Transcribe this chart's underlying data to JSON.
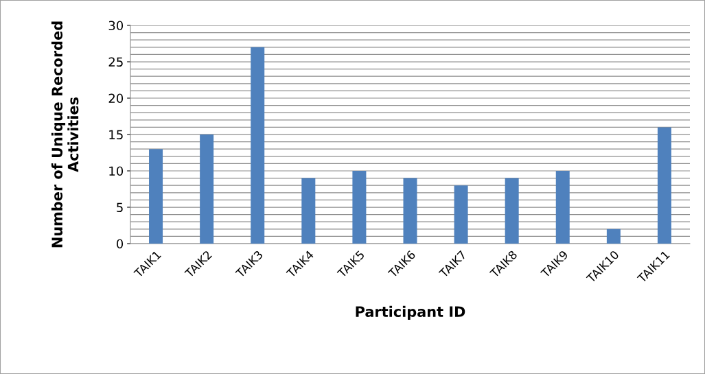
{
  "chart_data": {
    "type": "bar",
    "xlabel": "Participant ID",
    "ylabel": "Number of Unique Recorded\nActivities",
    "categories": [
      "TAIK1",
      "TAIK2",
      "TAIK3",
      "TAIK4",
      "TAIK5",
      "TAIK6",
      "TAIK7",
      "TAIK8",
      "TAIK9",
      "TAIK10",
      "TAIK11"
    ],
    "values": [
      13,
      15,
      27,
      9,
      10,
      9,
      8,
      9,
      10,
      2,
      16
    ],
    "color": "#4f81bd",
    "ylim": [
      0,
      30
    ],
    "yticks": [
      0,
      {
        "value": 1,
        "label": null
      },
      {
        "value": 2,
        "label": null
      },
      {
        "value": 3,
        "label": null
      },
      {
        "value": 4,
        "label": null
      },
      5,
      {
        "value": 6,
        "label": null
      },
      {
        "value": 7,
        "label": null
      },
      {
        "value": 8,
        "label": null
      },
      {
        "value": 9,
        "label": null
      },
      10,
      {
        "value": 11,
        "label": null
      },
      {
        "value": 12,
        "label": null
      },
      {
        "value": 13,
        "label": null
      },
      {
        "value": 14,
        "label": null
      },
      15,
      {
        "value": 16,
        "label": null
      },
      {
        "value": 17,
        "label": null
      },
      {
        "value": 18,
        "label": null
      },
      {
        "value": 19,
        "label": null
      },
      20,
      {
        "value": 21,
        "label": null
      },
      {
        "value": 22,
        "label": null
      },
      {
        "value": 23,
        "label": null
      },
      {
        "value": 24,
        "label": null
      },
      25,
      {
        "value": 26,
        "label": null
      },
      {
        "value": 27,
        "label": null
      },
      {
        "value": 28,
        "label": null
      },
      {
        "value": 29,
        "label": null
      },
      30
    ],
    "grid": "y"
  }
}
